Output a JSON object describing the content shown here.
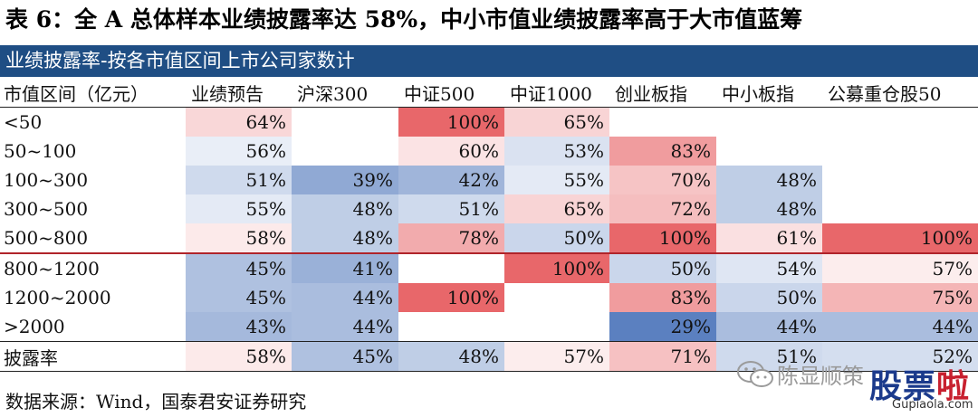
{
  "title": "表 6：全 A 总体样本业绩披露率达 58%，中小市值业绩披露率高于大市值蓝筹",
  "table": {
    "header_bar": "业绩披露率-按各市值区间上市公司家数计",
    "columns": [
      "市值区间（亿元）",
      "业绩预告",
      "沪深300",
      "中证500",
      "中证1000",
      "创业板指",
      "中小板指",
      "公募重仓股50"
    ],
    "rows": [
      {
        "label": "<50",
        "values": [
          "64%",
          "",
          "100%",
          "65%",
          "",
          "",
          ""
        ]
      },
      {
        "label": "50~100",
        "values": [
          "56%",
          "",
          "60%",
          "53%",
          "83%",
          "",
          ""
        ]
      },
      {
        "label": "100~300",
        "values": [
          "51%",
          "39%",
          "42%",
          "55%",
          "70%",
          "48%",
          ""
        ]
      },
      {
        "label": "300~500",
        "values": [
          "55%",
          "48%",
          "51%",
          "65%",
          "72%",
          "48%",
          ""
        ]
      },
      {
        "label": "500~800",
        "values": [
          "58%",
          "48%",
          "78%",
          "50%",
          "100%",
          "61%",
          "100%"
        ]
      },
      {
        "label": "800~1200",
        "values": [
          "45%",
          "41%",
          "",
          "100%",
          "50%",
          "54%",
          "57%"
        ]
      },
      {
        "label": "1200~2000",
        "values": [
          "45%",
          "44%",
          "100%",
          "",
          "83%",
          "50%",
          "75%"
        ]
      },
      {
        "label": ">2000",
        "values": [
          "43%",
          "44%",
          "",
          "",
          "29%",
          "44%",
          "44%"
        ]
      },
      {
        "label": "披露率",
        "values": [
          "58%",
          "45%",
          "48%",
          "57%",
          "71%",
          "51%",
          "52%"
        ]
      }
    ],
    "heat_colors": {
      "high": "#e8676a",
      "mid": "#ffffff",
      "low": "#5b80c0"
    }
  },
  "source": "数据来源：Wind，国泰君安证券研究",
  "watermark": {
    "account": "陈显顺策",
    "brand_blue": "股票",
    "brand_red": "啦",
    "url": "Gupiaola.com"
  }
}
